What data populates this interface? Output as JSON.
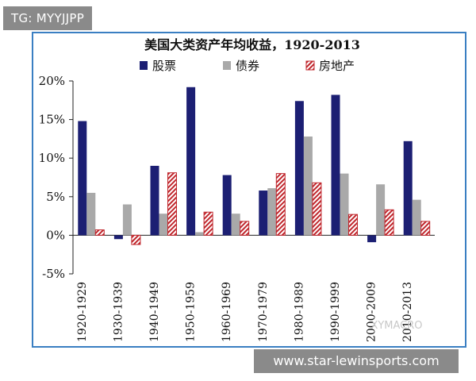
{
  "badge": {
    "text": "TG: MYYJJPP"
  },
  "footer": {
    "site": "www.star-lewinsports.com"
  },
  "watermark": {
    "text": "XYMACRO"
  },
  "colors": {
    "stocks": "#1c1f73",
    "bonds": "#a9a9a9",
    "realestate": "#c0272d",
    "frame": "#3a7fc2"
  },
  "chart_data": {
    "type": "bar",
    "title": "美国大类资产年均收益，1920-2013",
    "xlabel": "",
    "ylabel": "",
    "ylim": [
      -5,
      20
    ],
    "yticks": [
      20,
      15,
      10,
      5,
      0,
      -5
    ],
    "ytick_labels": [
      "20%",
      "15%",
      "10%",
      "5%",
      "0%",
      "-5%"
    ],
    "legend_position": "top",
    "categories": [
      "1920-1929",
      "1930-1939",
      "1940-1949",
      "1950-1959",
      "1960-1969",
      "1970-1979",
      "1980-1989",
      "1990-1999",
      "2000-2009",
      "2010-2013"
    ],
    "series": [
      {
        "name": "股票",
        "values": [
          14.8,
          -0.5,
          9.0,
          19.2,
          7.8,
          5.8,
          17.4,
          18.2,
          -0.9,
          12.2
        ]
      },
      {
        "name": "债券",
        "values": [
          5.5,
          4.0,
          2.8,
          0.4,
          2.8,
          6.1,
          12.8,
          8.0,
          6.6,
          4.6
        ]
      },
      {
        "name": "房地产",
        "values": [
          0.7,
          -1.2,
          8.1,
          3.0,
          1.8,
          8.0,
          6.8,
          2.7,
          3.3,
          1.8
        ]
      }
    ]
  }
}
